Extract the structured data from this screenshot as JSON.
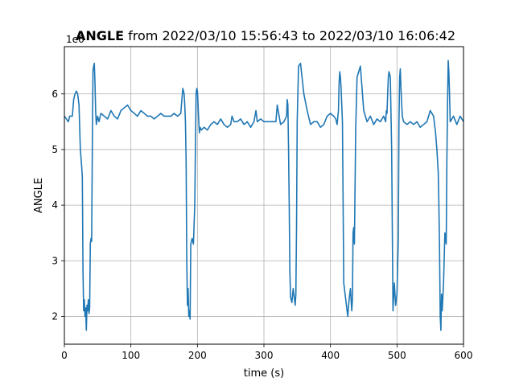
{
  "chart_data": {
    "type": "line",
    "title_bold": "ANGLE",
    "title_rest": " from 2022/03/10 15:56:43 to 2022/03/10 16:06:42",
    "xlabel": "time (s)",
    "ylabel": "ANGLE",
    "y_offset_label": "1e6",
    "xlim": [
      0,
      600
    ],
    "ylim": [
      1.5,
      6.85
    ],
    "y_scale_factor": 1000000,
    "xticks": [
      0,
      100,
      200,
      300,
      400,
      500,
      600
    ],
    "yticks": [
      2,
      3,
      4,
      5,
      6
    ],
    "grid": true,
    "line_color": "#1f77b4",
    "series": [
      {
        "values_note": "y in units of 1e6",
        "x": [
          0,
          3,
          6,
          8,
          10,
          12,
          14,
          16,
          18,
          20,
          22,
          24,
          26,
          27,
          28,
          29,
          30,
          31,
          32,
          33,
          34,
          35,
          36,
          37,
          38,
          39,
          40,
          41,
          42,
          43,
          44,
          45,
          46,
          47,
          48,
          50,
          52,
          55,
          60,
          65,
          70,
          75,
          80,
          85,
          90,
          95,
          100,
          105,
          110,
          115,
          120,
          125,
          130,
          135,
          140,
          145,
          150,
          155,
          160,
          165,
          170,
          175,
          178,
          180,
          181,
          182,
          183,
          184,
          185,
          186,
          187,
          188,
          189,
          190,
          192,
          194,
          196,
          198,
          199,
          200,
          201,
          202,
          203,
          204,
          206,
          210,
          215,
          220,
          225,
          230,
          235,
          240,
          245,
          250,
          252,
          255,
          260,
          265,
          270,
          275,
          280,
          285,
          288,
          290,
          295,
          300,
          305,
          310,
          315,
          318,
          320,
          325,
          330,
          332,
          334,
          335,
          336,
          337,
          338,
          339,
          340,
          342,
          344,
          346,
          347,
          348,
          349,
          350,
          352,
          355,
          360,
          365,
          370,
          375,
          380,
          385,
          390,
          395,
          400,
          405,
          408,
          410,
          412,
          413,
          414,
          415,
          416,
          418,
          420,
          422,
          424,
          426,
          428,
          430,
          432,
          433,
          434,
          435,
          436,
          438,
          440,
          445,
          450,
          455,
          460,
          465,
          470,
          475,
          480,
          483,
          484,
          485,
          486,
          487,
          488,
          490,
          492,
          494,
          496,
          498,
          500,
          502,
          503,
          504,
          505,
          506,
          508,
          510,
          515,
          520,
          525,
          530,
          535,
          540,
          545,
          550,
          555,
          558,
          560,
          562,
          563,
          564,
          565,
          566,
          567,
          568,
          570,
          572,
          574,
          575,
          576,
          577,
          578,
          579,
          580,
          585,
          590,
          595,
          600
        ],
        "y": [
          5.6,
          5.55,
          5.5,
          5.6,
          5.6,
          5.6,
          5.9,
          6.0,
          6.05,
          6.0,
          5.8,
          5.0,
          4.7,
          4.5,
          2.8,
          2.1,
          2.3,
          2.0,
          2.15,
          1.75,
          2.2,
          2.1,
          2.3,
          2.05,
          2.15,
          3.3,
          3.4,
          3.35,
          5.0,
          6.4,
          6.5,
          6.55,
          6.2,
          5.7,
          5.45,
          5.6,
          5.5,
          5.65,
          5.6,
          5.55,
          5.7,
          5.6,
          5.55,
          5.7,
          5.75,
          5.8,
          5.7,
          5.65,
          5.6,
          5.7,
          5.65,
          5.6,
          5.6,
          5.55,
          5.6,
          5.65,
          5.6,
          5.6,
          5.6,
          5.65,
          5.6,
          5.65,
          6.1,
          6.0,
          5.8,
          5.5,
          4.8,
          3.0,
          2.2,
          2.5,
          2.0,
          2.1,
          1.95,
          3.3,
          3.4,
          3.3,
          4.0,
          6.0,
          6.1,
          6.05,
          5.8,
          5.5,
          5.3,
          5.4,
          5.35,
          5.4,
          5.35,
          5.45,
          5.5,
          5.45,
          5.55,
          5.45,
          5.4,
          5.45,
          5.6,
          5.5,
          5.5,
          5.55,
          5.45,
          5.5,
          5.4,
          5.5,
          5.7,
          5.5,
          5.55,
          5.5,
          5.5,
          5.5,
          5.5,
          5.5,
          5.8,
          5.45,
          5.5,
          5.55,
          5.6,
          5.9,
          5.8,
          5.0,
          4.0,
          2.8,
          2.35,
          2.25,
          2.5,
          2.3,
          2.2,
          2.4,
          3.6,
          5.5,
          6.5,
          6.55,
          6.0,
          5.7,
          5.45,
          5.5,
          5.5,
          5.4,
          5.45,
          5.6,
          5.65,
          5.6,
          5.55,
          5.45,
          5.7,
          6.2,
          6.4,
          6.3,
          6.1,
          5.5,
          2.6,
          2.4,
          2.2,
          2.0,
          2.3,
          2.5,
          2.1,
          2.3,
          3.5,
          3.6,
          3.3,
          5.4,
          6.3,
          6.5,
          5.7,
          5.5,
          5.6,
          5.45,
          5.55,
          5.5,
          5.6,
          5.5,
          5.7,
          5.65,
          6.0,
          6.3,
          6.4,
          6.3,
          5.0,
          2.1,
          2.6,
          2.2,
          2.4,
          3.4,
          5.5,
          6.3,
          6.45,
          6.1,
          5.6,
          5.5,
          5.45,
          5.5,
          5.45,
          5.5,
          5.4,
          5.45,
          5.5,
          5.7,
          5.6,
          5.3,
          5.0,
          4.6,
          4.0,
          3.2,
          2.0,
          1.75,
          2.4,
          2.1,
          2.6,
          3.5,
          3.3,
          4.8,
          5.8,
          6.6,
          6.4,
          6.0,
          5.5,
          5.6,
          5.45,
          5.6,
          5.5
        ]
      }
    ]
  }
}
